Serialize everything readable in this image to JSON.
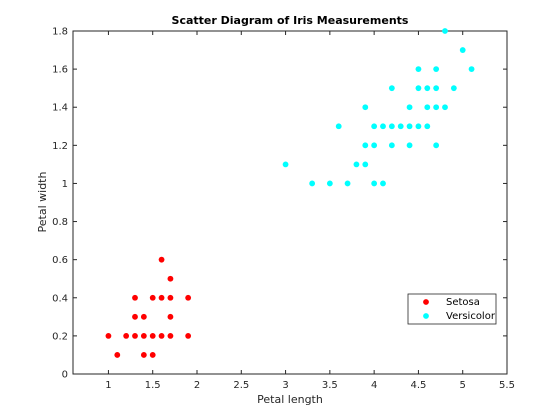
{
  "chart_data": {
    "type": "scatter",
    "title": "Scatter Diagram of Iris Measurements",
    "xlabel": "Petal length",
    "ylabel": "Petal width",
    "xlim": [
      0.6,
      5.5
    ],
    "ylim": [
      0,
      1.8
    ],
    "x_ticks": [
      1,
      1.5,
      2,
      2.5,
      3,
      3.5,
      4,
      4.5,
      5,
      5.5
    ],
    "y_ticks": [
      0,
      0.2,
      0.4,
      0.6,
      0.8,
      1,
      1.2,
      1.4,
      1.6,
      1.8
    ],
    "x_tick_labels": [
      "1",
      "1.5",
      "2",
      "2.5",
      "3",
      "3.5",
      "4",
      "4.5",
      "5",
      "5.5"
    ],
    "y_tick_labels": [
      "0",
      "0.2",
      "0.4",
      "0.6",
      "0.8",
      "1",
      "1.2",
      "1.4",
      "1.6",
      "1.8"
    ],
    "grid": false,
    "legend_position": "lower-right",
    "series": [
      {
        "name": "Setosa",
        "color": "#ff0000",
        "points": [
          [
            1.0,
            0.2
          ],
          [
            1.1,
            0.1
          ],
          [
            1.2,
            0.2
          ],
          [
            1.3,
            0.2
          ],
          [
            1.3,
            0.3
          ],
          [
            1.3,
            0.4
          ],
          [
            1.4,
            0.1
          ],
          [
            1.4,
            0.2
          ],
          [
            1.4,
            0.3
          ],
          [
            1.5,
            0.1
          ],
          [
            1.5,
            0.2
          ],
          [
            1.5,
            0.4
          ],
          [
            1.6,
            0.2
          ],
          [
            1.6,
            0.4
          ],
          [
            1.6,
            0.6
          ],
          [
            1.7,
            0.2
          ],
          [
            1.7,
            0.3
          ],
          [
            1.7,
            0.4
          ],
          [
            1.7,
            0.5
          ],
          [
            1.9,
            0.2
          ],
          [
            1.9,
            0.4
          ]
        ]
      },
      {
        "name": "Versicolor",
        "color": "#00ffff",
        "points": [
          [
            3.0,
            1.1
          ],
          [
            3.3,
            1.0
          ],
          [
            3.5,
            1.0
          ],
          [
            3.6,
            1.3
          ],
          [
            3.7,
            1.0
          ],
          [
            3.8,
            1.1
          ],
          [
            3.9,
            1.1
          ],
          [
            3.9,
            1.2
          ],
          [
            3.9,
            1.4
          ],
          [
            4.0,
            1.0
          ],
          [
            4.0,
            1.2
          ],
          [
            4.0,
            1.3
          ],
          [
            4.1,
            1.0
          ],
          [
            4.1,
            1.3
          ],
          [
            4.2,
            1.2
          ],
          [
            4.2,
            1.3
          ],
          [
            4.2,
            1.5
          ],
          [
            4.3,
            1.3
          ],
          [
            4.4,
            1.2
          ],
          [
            4.4,
            1.3
          ],
          [
            4.4,
            1.4
          ],
          [
            4.5,
            1.3
          ],
          [
            4.5,
            1.5
          ],
          [
            4.5,
            1.6
          ],
          [
            4.6,
            1.3
          ],
          [
            4.6,
            1.4
          ],
          [
            4.6,
            1.5
          ],
          [
            4.7,
            1.2
          ],
          [
            4.7,
            1.4
          ],
          [
            4.7,
            1.5
          ],
          [
            4.7,
            1.6
          ],
          [
            4.8,
            1.4
          ],
          [
            4.8,
            1.8
          ],
          [
            4.9,
            1.5
          ],
          [
            5.0,
            1.7
          ],
          [
            5.1,
            1.6
          ]
        ]
      }
    ]
  }
}
